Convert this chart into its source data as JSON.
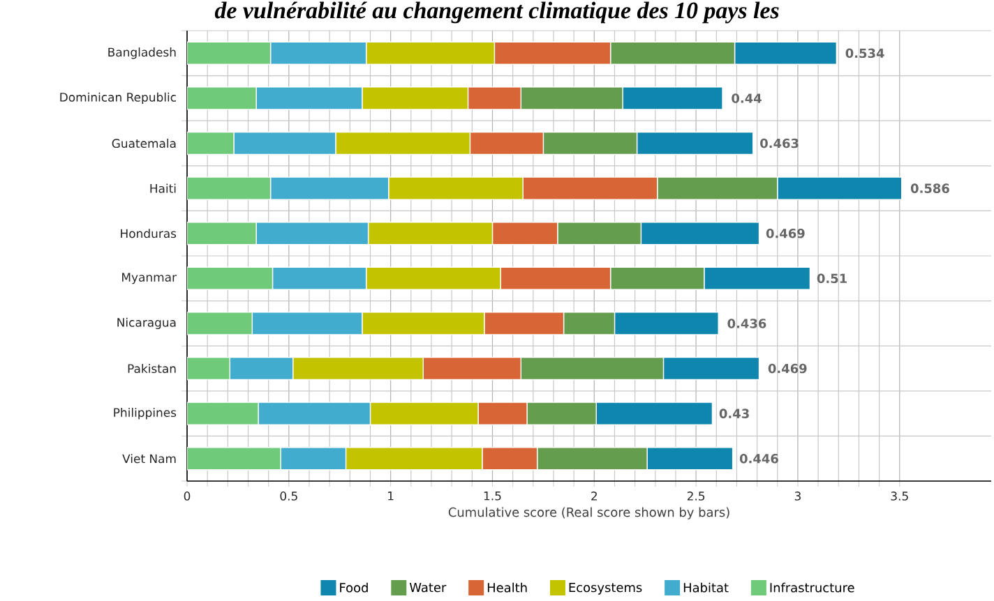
{
  "chart_data": {
    "type": "bar",
    "orientation": "horizontal",
    "stacked": true,
    "title": "de vulnérabilité au changement climatique des 10 pays les",
    "xlabel": "Cumulative score (Real score shown by bars)",
    "categories": [
      "Bangladesh",
      "Dominican Republic",
      "Guatemala",
      "Haiti",
      "Honduras",
      "Myanmar",
      "Nicaragua",
      "Pakistan",
      "Philippines",
      "Viet Nam"
    ],
    "series": [
      {
        "name": "Infrastructure",
        "color": "#6fcb7a",
        "values": [
          0.41,
          0.34,
          0.23,
          0.41,
          0.34,
          0.42,
          0.32,
          0.21,
          0.35,
          0.46
        ]
      },
      {
        "name": "Habitat",
        "color": "#42acce",
        "values": [
          0.47,
          0.52,
          0.5,
          0.58,
          0.55,
          0.46,
          0.54,
          0.31,
          0.55,
          0.32
        ]
      },
      {
        "name": "Ecosystems",
        "color": "#c3c300",
        "values": [
          0.63,
          0.52,
          0.66,
          0.66,
          0.61,
          0.66,
          0.6,
          0.64,
          0.53,
          0.67
        ]
      },
      {
        "name": "Health",
        "color": "#d86535",
        "values": [
          0.57,
          0.26,
          0.36,
          0.66,
          0.32,
          0.54,
          0.39,
          0.48,
          0.24,
          0.27
        ]
      },
      {
        "name": "Water",
        "color": "#659d4f",
        "values": [
          0.61,
          0.5,
          0.46,
          0.59,
          0.41,
          0.46,
          0.25,
          0.7,
          0.34,
          0.54
        ]
      },
      {
        "name": "Food",
        "color": "#0e86ad",
        "values": [
          0.5,
          0.49,
          0.57,
          0.61,
          0.58,
          0.52,
          0.51,
          0.47,
          0.57,
          0.42
        ]
      }
    ],
    "annotations": [
      {
        "text": "0.534",
        "x": 3.19,
        "y": "Bangladesh"
      },
      {
        "text": "0.44",
        "x": 2.63,
        "y": "Dominican Republic"
      },
      {
        "text": "0.463",
        "x": 2.77,
        "y": "Guatemala"
      },
      {
        "text": "0.586",
        "x": 3.51,
        "y": "Haiti"
      },
      {
        "text": "0.469",
        "x": 2.8,
        "y": "Honduras"
      },
      {
        "text": "0.51",
        "x": 3.05,
        "y": "Myanmar"
      },
      {
        "text": "0.436",
        "x": 2.61,
        "y": "Nicaragua"
      },
      {
        "text": "0.469",
        "x": 2.81,
        "y": "Pakistan"
      },
      {
        "text": "0.43",
        "x": 2.57,
        "y": "Philippines"
      },
      {
        "text": "0.446",
        "x": 2.67,
        "y": "Viet Nam"
      }
    ],
    "xlim": [
      0,
      3.95
    ],
    "xticks": [
      0,
      0.5,
      1,
      1.5,
      2,
      2.5,
      3,
      3.5
    ],
    "grid": true,
    "legend": "bottom"
  }
}
